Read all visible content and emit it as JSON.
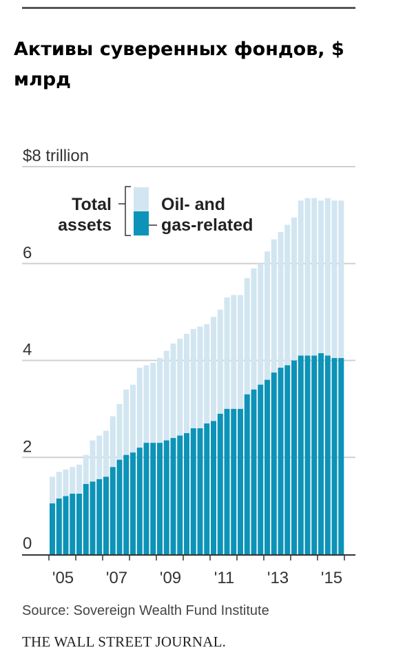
{
  "title": "Активы суверенных фондов, $ млрд",
  "source": "Source: Sovereign Wealth Fund Institute",
  "publisher": "THE WALL STREET JOURNAL.",
  "colors": {
    "total": "#d2e6f1",
    "oil_gas": "#0d93b7",
    "grid": "#d0d0d0",
    "axis": "#333333",
    "text": "#333333"
  },
  "chart_data": {
    "type": "bar",
    "subtype": "overlapping-stacked",
    "ylim": [
      0,
      8
    ],
    "y_ticks": [
      {
        "value": 8,
        "label": "$8 trillion"
      },
      {
        "value": 6,
        "label": "6"
      },
      {
        "value": 4,
        "label": "4"
      },
      {
        "value": 2,
        "label": "2"
      },
      {
        "value": 0,
        "label": "0"
      }
    ],
    "x_tick_labels": [
      "'05",
      "'07",
      "'09",
      "'11",
      "'13",
      "'15"
    ],
    "legend": {
      "left_top": "Total",
      "left_bottom": "assets",
      "right_top": "Oil- and",
      "right_bottom": "gas-related"
    },
    "grid": true,
    "series": [
      {
        "name": "Total assets",
        "values": [
          1.6,
          1.7,
          1.75,
          1.8,
          1.85,
          2.05,
          2.35,
          2.45,
          2.55,
          2.85,
          3.1,
          3.4,
          3.5,
          3.85,
          3.9,
          3.95,
          4.05,
          4.2,
          4.35,
          4.45,
          4.55,
          4.65,
          4.7,
          4.75,
          4.9,
          5.05,
          5.3,
          5.35,
          5.35,
          5.7,
          5.9,
          6.0,
          6.25,
          6.5,
          6.65,
          6.8,
          6.95,
          7.3,
          7.35,
          7.35,
          7.3,
          7.35,
          7.3,
          7.3
        ]
      },
      {
        "name": "Oil- and gas-related",
        "values": [
          1.05,
          1.15,
          1.2,
          1.25,
          1.25,
          1.45,
          1.5,
          1.55,
          1.6,
          1.8,
          1.95,
          2.05,
          2.1,
          2.2,
          2.3,
          2.3,
          2.3,
          2.35,
          2.4,
          2.45,
          2.5,
          2.6,
          2.6,
          2.7,
          2.75,
          2.9,
          3.0,
          3.0,
          3.0,
          3.3,
          3.4,
          3.5,
          3.6,
          3.75,
          3.85,
          3.9,
          4.0,
          4.1,
          4.1,
          4.1,
          4.15,
          4.1,
          4.05,
          4.05
        ]
      }
    ]
  }
}
